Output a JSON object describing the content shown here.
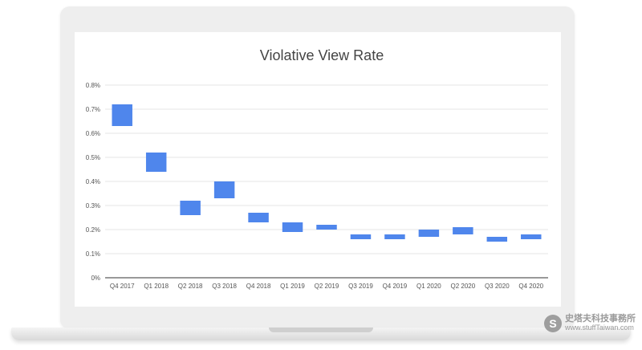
{
  "chart_data": {
    "type": "bar",
    "subtype": "floating-range",
    "title": "Violative View Rate",
    "xlabel": "",
    "ylabel": "",
    "ylim": [
      0,
      0.8
    ],
    "yticks": [
      0,
      0.1,
      0.2,
      0.3,
      0.4,
      0.5,
      0.6,
      0.7,
      0.8
    ],
    "ytick_labels": [
      "0%",
      "0.1%",
      "0.2%",
      "0.3%",
      "0.4%",
      "0.5%",
      "0.6%",
      "0.7%",
      "0.8%"
    ],
    "grid": true,
    "color": "#4f86ec",
    "categories": [
      "Q4 2017",
      "Q1 2018",
      "Q2 2018",
      "Q3 2018",
      "Q4 2018",
      "Q1 2019",
      "Q2 2019",
      "Q3 2019",
      "Q4 2019",
      "Q1 2020",
      "Q2 2020",
      "Q3 2020",
      "Q4 2020"
    ],
    "low": [
      0.63,
      0.44,
      0.26,
      0.33,
      0.23,
      0.19,
      0.2,
      0.16,
      0.16,
      0.17,
      0.18,
      0.15,
      0.16
    ],
    "high": [
      0.72,
      0.52,
      0.32,
      0.4,
      0.27,
      0.23,
      0.22,
      0.18,
      0.18,
      0.2,
      0.21,
      0.17,
      0.18
    ]
  },
  "watermark": {
    "logo_letter": "S",
    "text": "史塔夫科技事務所",
    "url": "www.stuffTaiwan.com"
  }
}
